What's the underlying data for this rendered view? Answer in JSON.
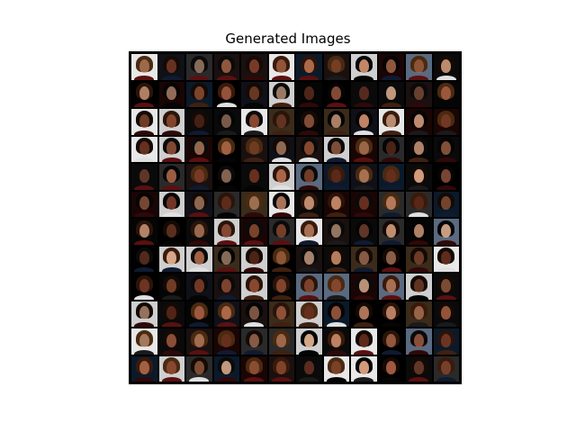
{
  "figure": {
    "title": "Generated Images"
  },
  "grid": {
    "rows": 12,
    "cols": 12,
    "content": "generated face thumbnails"
  }
}
